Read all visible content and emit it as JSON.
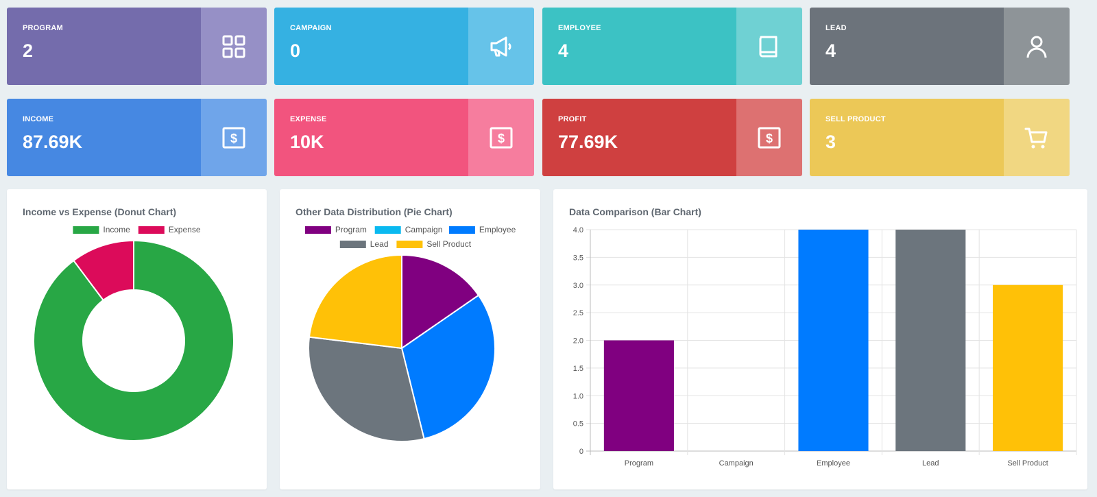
{
  "cards": [
    {
      "label": "PROGRAM",
      "value": "2",
      "icon": "grid-icon",
      "main_color": "#746cac",
      "side_color": "#9690c6"
    },
    {
      "label": "CAMPAIGN",
      "value": "0",
      "icon": "megaphone-icon",
      "main_color": "#35b1e2",
      "side_color": "#66c3e9"
    },
    {
      "label": "EMPLOYEE",
      "value": "4",
      "icon": "book-icon",
      "main_color": "#3cc2c4",
      "side_color": "#6fd1d3"
    },
    {
      "label": "LEAD",
      "value": "4",
      "icon": "user-icon",
      "main_color": "#6c737b",
      "side_color": "#8e9498"
    },
    {
      "label": "INCOME",
      "value": "87.69K",
      "icon": "dollar-icon",
      "main_color": "#4688e2",
      "side_color": "#6fa5ea"
    },
    {
      "label": "EXPENSE",
      "value": "10K",
      "icon": "dollar-icon",
      "main_color": "#f2547e",
      "side_color": "#f67d9e"
    },
    {
      "label": "PROFIT",
      "value": "77.69K",
      "icon": "dollar-icon",
      "main_color": "#cf4040",
      "side_color": "#dd7171"
    },
    {
      "label": "SELL PRODUCT",
      "value": "3",
      "icon": "cart-icon",
      "main_color": "#ecc857",
      "side_color": "#f1d782"
    }
  ],
  "panels": {
    "donut_title": "Income vs Expense (Donut Chart)",
    "pie_title": "Other Data Distribution (Pie Chart)",
    "bar_title": "Data Comparison (Bar Chart)"
  },
  "chart_data": [
    {
      "type": "pie",
      "variant": "donut",
      "title": "Income vs Expense (Donut Chart)",
      "legend_position": "top",
      "categories": [
        "Income",
        "Expense"
      ],
      "values": [
        87690,
        10000
      ],
      "colors": [
        "#28a745",
        "#dc0b5a"
      ]
    },
    {
      "type": "pie",
      "title": "Other Data Distribution (Pie Chart)",
      "legend_position": "top",
      "categories": [
        "Program",
        "Campaign",
        "Employee",
        "Lead",
        "Sell Product"
      ],
      "values": [
        2,
        0,
        4,
        4,
        3
      ],
      "colors": [
        "#800080",
        "#0ab9f0",
        "#007bff",
        "#6c757d",
        "#ffc107"
      ]
    },
    {
      "type": "bar",
      "title": "Data Comparison (Bar Chart)",
      "categories": [
        "Program",
        "Campaign",
        "Employee",
        "Lead",
        "Sell Product"
      ],
      "values": [
        2,
        0,
        4,
        4,
        3
      ],
      "colors": [
        "#800080",
        "#0ab9f0",
        "#007bff",
        "#6c757d",
        "#ffc107"
      ],
      "ylim": [
        0,
        4
      ],
      "yticks": [
        "0",
        "0.5",
        "1.0",
        "1.5",
        "2.0",
        "2.5",
        "3.0",
        "3.5",
        "4.0"
      ],
      "grid": true
    }
  ]
}
